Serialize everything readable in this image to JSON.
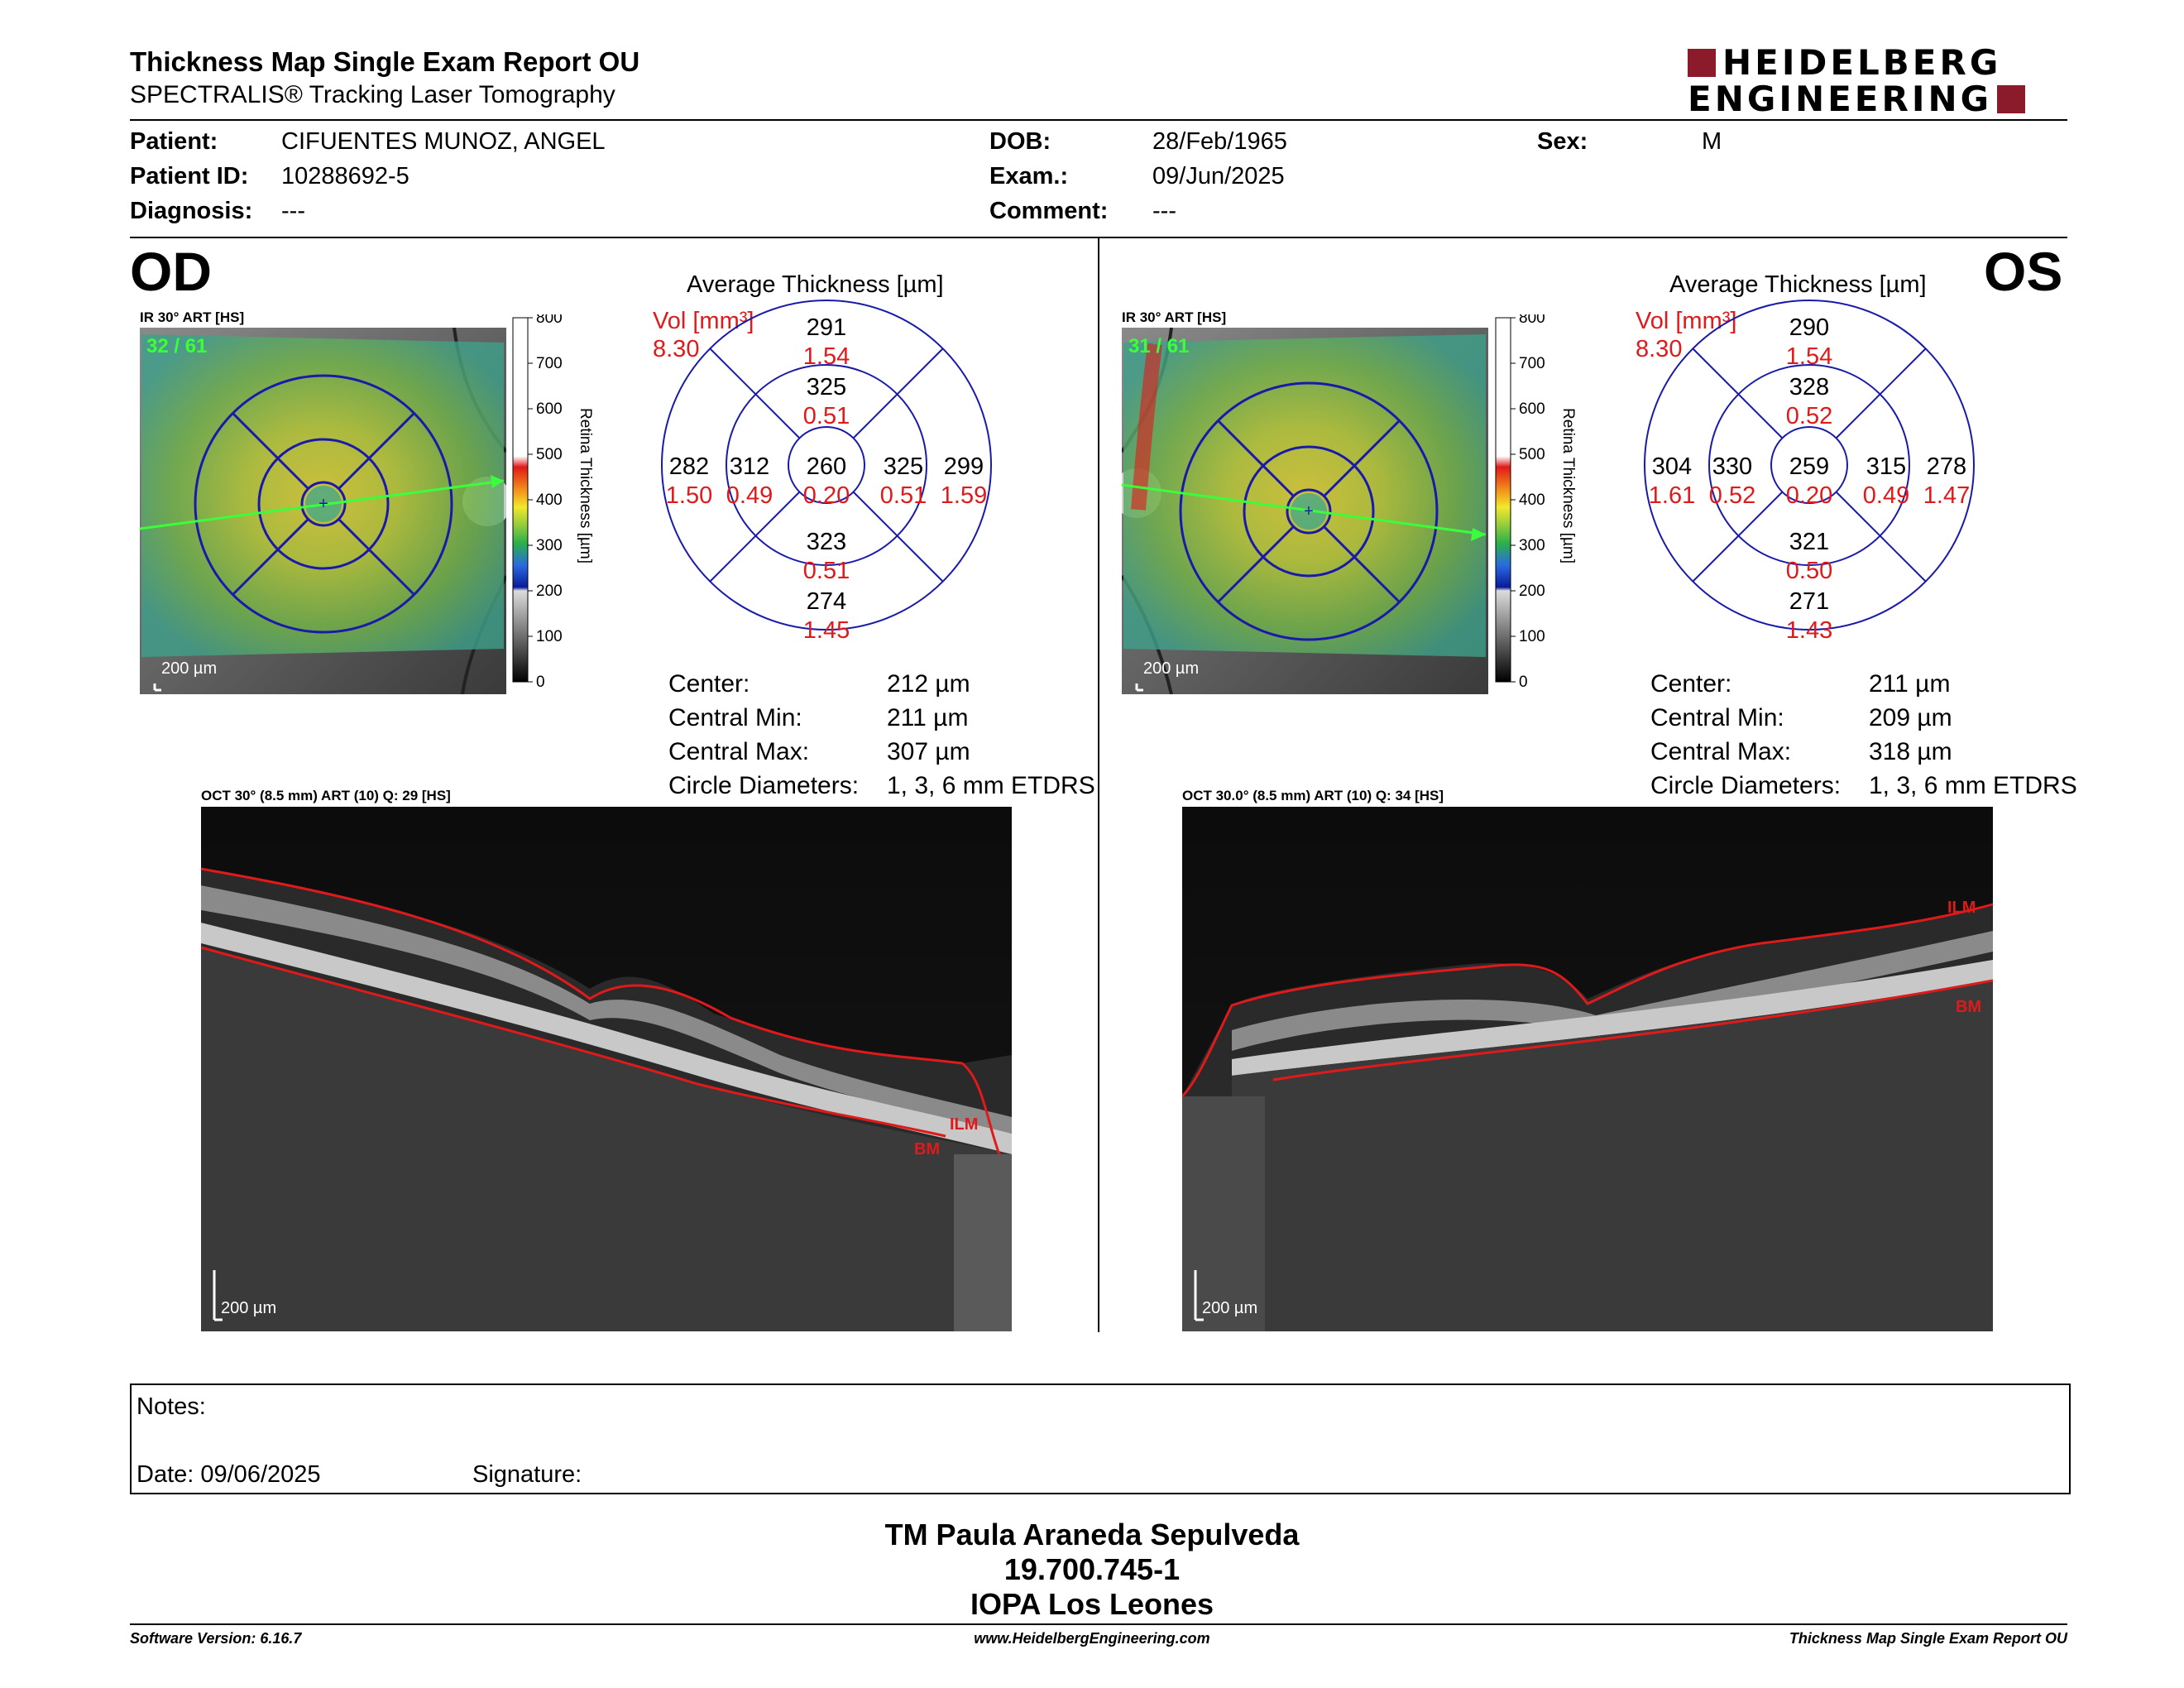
{
  "header": {
    "title": "Thickness Map Single Exam Report OU",
    "subtitle": "SPECTRALIS® Tracking Laser Tomography",
    "logo_line1": "HEIDELBERG",
    "logo_line2": "ENGINEERING",
    "brand_color": "#8b1a2b"
  },
  "patient": {
    "patient_label": "Patient:",
    "patient_value": "CIFUENTES MUNOZ, ANGEL",
    "id_label": "Patient ID:",
    "id_value": "10288692-5",
    "diag_label": "Diagnosis:",
    "diag_value": "---",
    "dob_label": "DOB:",
    "dob_value": "28/Feb/1965",
    "exam_label": "Exam.:",
    "exam_value": "09/Jun/2025",
    "comment_label": "Comment:",
    "comment_value": "---",
    "sex_label": "Sex:",
    "sex_value": "M"
  },
  "od": {
    "eye": "OD",
    "ir_title": "IR 30° ART [HS]",
    "counter": "32 / 61",
    "scale": "200 µm",
    "colorbar_ticks": [
      "800",
      "700",
      "600",
      "500",
      "400",
      "300",
      "200",
      "100",
      "0"
    ],
    "colorbar_label": "Retina Thickness [µm]",
    "avg_title": "Average Thickness [µm]",
    "vol_label": "Vol [mm³]",
    "vol_total": "8.30",
    "grid": {
      "center": [
        "260",
        "0.20"
      ],
      "inner_sup": [
        "325",
        "0.51"
      ],
      "inner_inf": [
        "323",
        "0.51"
      ],
      "inner_left": [
        "312",
        "0.49"
      ],
      "inner_right": [
        "325",
        "0.51"
      ],
      "outer_sup": [
        "291",
        "1.54"
      ],
      "outer_inf": [
        "274",
        "1.45"
      ],
      "outer_left": [
        "282",
        "1.50"
      ],
      "outer_right": [
        "299",
        "1.59"
      ]
    },
    "stats": [
      {
        "label": "Center:",
        "value": "212 µm"
      },
      {
        "label": "Central Min:",
        "value": "211 µm"
      },
      {
        "label": "Central Max:",
        "value": "307 µm"
      },
      {
        "label": "Circle Diameters:",
        "value": "1, 3, 6 mm ETDRS"
      }
    ],
    "oct_title": "OCT 30° (8.5 mm) ART (10) Q: 29 [HS]",
    "oct_scale": "200 µm",
    "ilm": "ILM",
    "bm": "BM"
  },
  "os": {
    "eye": "OS",
    "ir_title": "IR 30° ART [HS]",
    "counter": "31 / 61",
    "scale": "200 µm",
    "colorbar_ticks": [
      "800",
      "700",
      "600",
      "500",
      "400",
      "300",
      "200",
      "100",
      "0"
    ],
    "colorbar_label": "Retina Thickness [µm]",
    "avg_title": "Average Thickness [µm]",
    "vol_label": "Vol [mm³]",
    "vol_total": "8.30",
    "grid": {
      "center": [
        "259",
        "0.20"
      ],
      "inner_sup": [
        "328",
        "0.52"
      ],
      "inner_inf": [
        "321",
        "0.50"
      ],
      "inner_left": [
        "330",
        "0.52"
      ],
      "inner_right": [
        "315",
        "0.49"
      ],
      "outer_sup": [
        "290",
        "1.54"
      ],
      "outer_inf": [
        "271",
        "1.43"
      ],
      "outer_left": [
        "304",
        "1.61"
      ],
      "outer_right": [
        "278",
        "1.47"
      ]
    },
    "stats": [
      {
        "label": "Center:",
        "value": "211 µm"
      },
      {
        "label": "Central Min:",
        "value": "209 µm"
      },
      {
        "label": "Central Max:",
        "value": "318 µm"
      },
      {
        "label": "Circle Diameters:",
        "value": "1, 3, 6 mm ETDRS"
      }
    ],
    "oct_title": "OCT 30.0° (8.5 mm) ART (10) Q: 34 [HS]",
    "oct_scale": "200 µm",
    "ilm": "ILM",
    "bm": "BM"
  },
  "notes": {
    "notes_label": "Notes:",
    "date_label": "Date: 09/06/2025",
    "signature_label": "Signature:"
  },
  "technician": {
    "name": "TM Paula Araneda Sepulveda",
    "id": "19.700.745-1",
    "place": "IOPA Los Leones"
  },
  "footer": {
    "software": "Software Version: 6.16.7",
    "website": "www.HeidelbergEngineering.com",
    "report": "Thickness Map Single Exam Report OU"
  }
}
